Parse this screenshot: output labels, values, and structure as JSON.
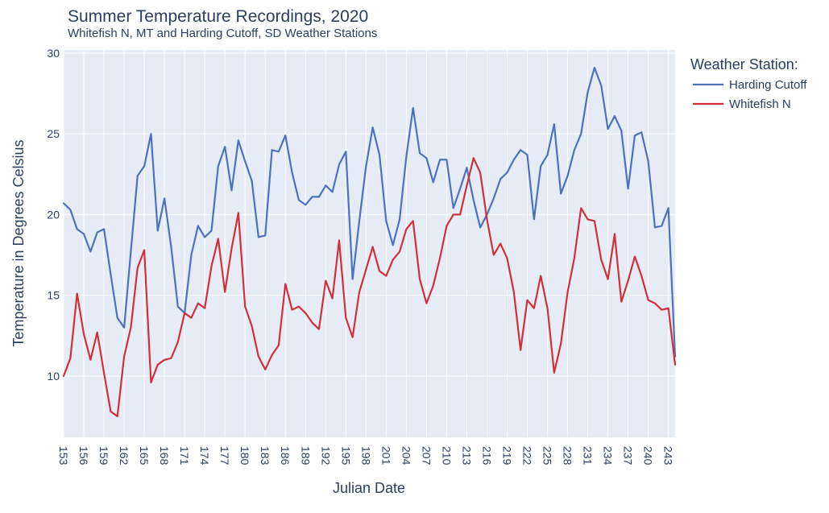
{
  "chart_data": {
    "type": "line",
    "title": "Summer Temperature Recordings, 2020",
    "subtitle": "Whitefish N, MT and Harding Cutoff, SD Weather Stations",
    "xlabel": "Julian Date",
    "ylabel": "Temperature in Degrees Celsius",
    "xlim": [
      153,
      244
    ],
    "ylim": [
      6.2,
      30.2
    ],
    "xticks": [
      153,
      156,
      159,
      162,
      165,
      168,
      171,
      174,
      177,
      180,
      183,
      186,
      189,
      192,
      195,
      198,
      201,
      204,
      207,
      210,
      213,
      216,
      219,
      222,
      225,
      228,
      231,
      234,
      237,
      240,
      243
    ],
    "yticks": [
      10,
      15,
      20,
      25,
      30
    ],
    "grid": true,
    "legend": {
      "title": "Weather Station:",
      "position": "top-right"
    },
    "x": [
      153,
      154,
      155,
      156,
      157,
      158,
      159,
      160,
      161,
      162,
      163,
      164,
      165,
      166,
      167,
      168,
      169,
      170,
      171,
      172,
      173,
      174,
      175,
      176,
      177,
      178,
      179,
      180,
      181,
      182,
      183,
      184,
      185,
      186,
      187,
      188,
      189,
      190,
      191,
      192,
      193,
      194,
      195,
      196,
      197,
      198,
      199,
      200,
      201,
      202,
      203,
      204,
      205,
      206,
      207,
      208,
      209,
      210,
      211,
      212,
      213,
      214,
      215,
      216,
      217,
      218,
      219,
      220,
      221,
      222,
      223,
      224,
      225,
      226,
      227,
      228,
      229,
      230,
      231,
      232,
      233,
      234,
      235,
      236,
      237,
      238,
      239,
      240,
      241,
      242,
      243,
      244
    ],
    "series": [
      {
        "name": "Harding Cutoff",
        "color": "#4c72bf",
        "values": [
          20.7,
          20.3,
          19.1,
          18.8,
          17.7,
          18.9,
          19.1,
          16.3,
          13.6,
          13.0,
          17.7,
          22.4,
          23.0,
          25.0,
          19.0,
          21.0,
          18.0,
          14.3,
          13.9,
          17.5,
          19.3,
          18.6,
          19.0,
          23.0,
          24.2,
          21.5,
          24.6,
          23.3,
          22.1,
          18.6,
          18.7,
          24.0,
          23.9,
          24.9,
          22.6,
          20.9,
          20.6,
          21.1,
          21.1,
          21.8,
          21.4,
          23.1,
          23.9,
          16.0,
          19.6,
          23.0,
          25.4,
          23.7,
          19.6,
          18.1,
          19.7,
          23.6,
          26.6,
          23.8,
          23.5,
          22.0,
          23.4,
          23.4,
          20.4,
          21.6,
          22.9,
          20.9,
          19.2,
          20.0,
          21.0,
          22.2,
          22.6,
          23.4,
          24.0,
          23.7,
          19.7,
          23.0,
          23.7,
          25.6,
          21.3,
          22.4,
          24.0,
          25.0,
          27.6,
          29.1,
          28.0,
          25.3,
          26.1,
          25.2,
          21.6,
          24.9,
          25.1,
          23.3,
          19.2,
          19.3,
          20.4,
          11.2
        ]
      },
      {
        "name": "Whitefish N",
        "color": "#d1303b",
        "values": [
          10.0,
          11.1,
          15.1,
          12.6,
          11.0,
          12.7,
          10.2,
          7.8,
          7.5,
          11.2,
          13.0,
          16.7,
          17.8,
          9.6,
          10.7,
          11.0,
          11.1,
          12.1,
          13.9,
          13.6,
          14.5,
          14.2,
          16.8,
          18.5,
          15.2,
          17.9,
          20.1,
          14.3,
          13.1,
          11.2,
          10.4,
          11.3,
          11.9,
          15.7,
          14.1,
          14.3,
          13.9,
          13.3,
          12.9,
          15.9,
          14.8,
          18.4,
          13.6,
          12.4,
          15.2,
          16.6,
          18.0,
          16.5,
          16.2,
          17.2,
          17.7,
          19.1,
          19.6,
          16.0,
          14.5,
          15.6,
          17.3,
          19.3,
          20.0,
          20.0,
          21.8,
          23.5,
          22.6,
          19.7,
          17.5,
          18.2,
          17.3,
          15.2,
          11.6,
          14.7,
          14.2,
          16.2,
          14.2,
          10.2,
          12.0,
          15.2,
          17.3,
          20.4,
          19.7,
          19.6,
          17.2,
          16.0,
          18.8,
          14.6,
          15.9,
          17.4,
          16.2,
          14.7,
          14.5,
          14.1,
          14.2,
          10.7
        ]
      }
    ]
  }
}
